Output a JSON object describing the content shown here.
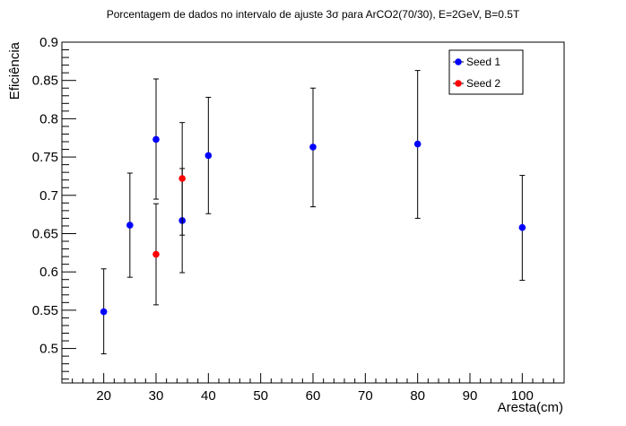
{
  "chart_data": {
    "type": "scatter",
    "title": "Porcentagem de dados no intervalo de ajuste 3σ para ArCO2(70/30), E=2GeV, B=0.5T",
    "xlabel": "Aresta(cm)",
    "ylabel": "Eficiência",
    "xlim": [
      12,
      108
    ],
    "ylim": [
      0.455,
      0.9
    ],
    "x_ticks": [
      20,
      30,
      40,
      50,
      60,
      70,
      80,
      90,
      100
    ],
    "y_ticks": [
      0.5,
      0.55,
      0.6,
      0.65,
      0.7,
      0.75,
      0.8,
      0.85,
      0.9
    ],
    "legend_position": "top-right",
    "series": [
      {
        "name": "Seed 1",
        "color": "#0000ff",
        "points": [
          {
            "x": 20,
            "y": 0.548,
            "err_low": 0.493,
            "err_high": 0.604
          },
          {
            "x": 25,
            "y": 0.661,
            "err_low": 0.593,
            "err_high": 0.729
          },
          {
            "x": 30,
            "y": 0.773,
            "err_low": 0.695,
            "err_high": 0.852
          },
          {
            "x": 35,
            "y": 0.667,
            "err_low": 0.599,
            "err_high": 0.735
          },
          {
            "x": 40,
            "y": 0.752,
            "err_low": 0.676,
            "err_high": 0.828
          },
          {
            "x": 60,
            "y": 0.763,
            "err_low": 0.685,
            "err_high": 0.84
          },
          {
            "x": 80,
            "y": 0.767,
            "err_low": 0.67,
            "err_high": 0.863
          },
          {
            "x": 100,
            "y": 0.658,
            "err_low": 0.589,
            "err_high": 0.726
          }
        ]
      },
      {
        "name": "Seed 2",
        "color": "#ff0000",
        "points": [
          {
            "x": 30,
            "y": 0.623,
            "err_low": 0.557,
            "err_high": 0.689
          },
          {
            "x": 35,
            "y": 0.722,
            "err_low": 0.648,
            "err_high": 0.795
          }
        ]
      }
    ]
  }
}
